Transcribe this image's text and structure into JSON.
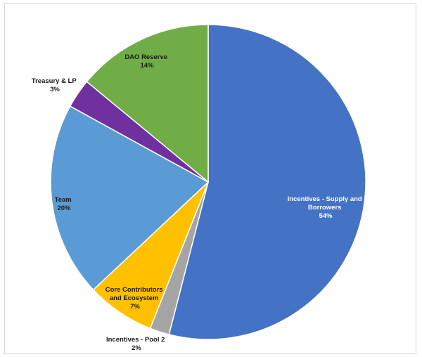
{
  "chart_data": {
    "type": "pie",
    "title": "",
    "start_angle_deg": 0,
    "direction": "clockwise",
    "slices": [
      {
        "name": "Incentives - Supply and Borrowers",
        "value": 54,
        "label_lines": [
          "Incentives - Supply and",
          "Borrowers"
        ],
        "pct": "54%",
        "color": "#4472C4"
      },
      {
        "name": "Incentives - Pool 2",
        "value": 2,
        "label_lines": [
          "Incentives - Pool 2"
        ],
        "pct": "2%",
        "color": "#A5A5A5"
      },
      {
        "name": "Core Contributors and Ecosystem",
        "value": 7,
        "label_lines": [
          "Core Contributors",
          "and Ecosystem"
        ],
        "pct": "7%",
        "color": "#FFC000"
      },
      {
        "name": "Team",
        "value": 20,
        "label_lines": [
          "Team"
        ],
        "pct": "20%",
        "color": "#5B9BD5"
      },
      {
        "name": "Treasury & LP",
        "value": 3,
        "label_lines": [
          "Treasury & LP"
        ],
        "pct": "3%",
        "color": "#7030A0"
      },
      {
        "name": "DAO Reserve",
        "value": 14,
        "label_lines": [
          "DAO Reserve"
        ],
        "pct": "14%",
        "color": "#70AD47"
      }
    ]
  }
}
